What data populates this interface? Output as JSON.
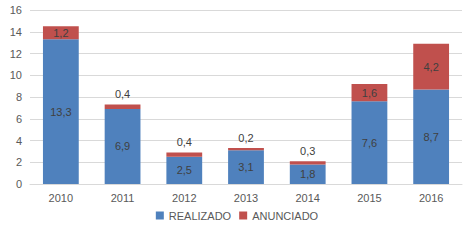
{
  "chart_data": {
    "type": "bar",
    "stacked": true,
    "categories": [
      "2010",
      "2011",
      "2012",
      "2013",
      "2014",
      "2015",
      "2016"
    ],
    "series": [
      {
        "name": "REALIZADO",
        "color": "#4F81BD",
        "values": [
          13.3,
          6.9,
          2.5,
          3.1,
          1.8,
          7.6,
          8.7
        ],
        "value_labels": [
          "13,3",
          "6,9",
          "2,5",
          "3,1",
          "1,8",
          "7,6",
          "8,7"
        ]
      },
      {
        "name": "ANUNCIADO",
        "color": "#C0504D",
        "values": [
          1.2,
          0.4,
          0.4,
          0.2,
          0.3,
          1.6,
          4.2
        ],
        "value_labels": [
          "1,2",
          "0,4",
          "0,4",
          "0,2",
          "0,3",
          "1,6",
          "4,2"
        ]
      }
    ],
    "ylim": [
      0,
      16
    ],
    "yticks": [
      0,
      2,
      4,
      6,
      8,
      10,
      12,
      14,
      16
    ],
    "grid": true,
    "legend": "bottom",
    "data_labels": true
  }
}
